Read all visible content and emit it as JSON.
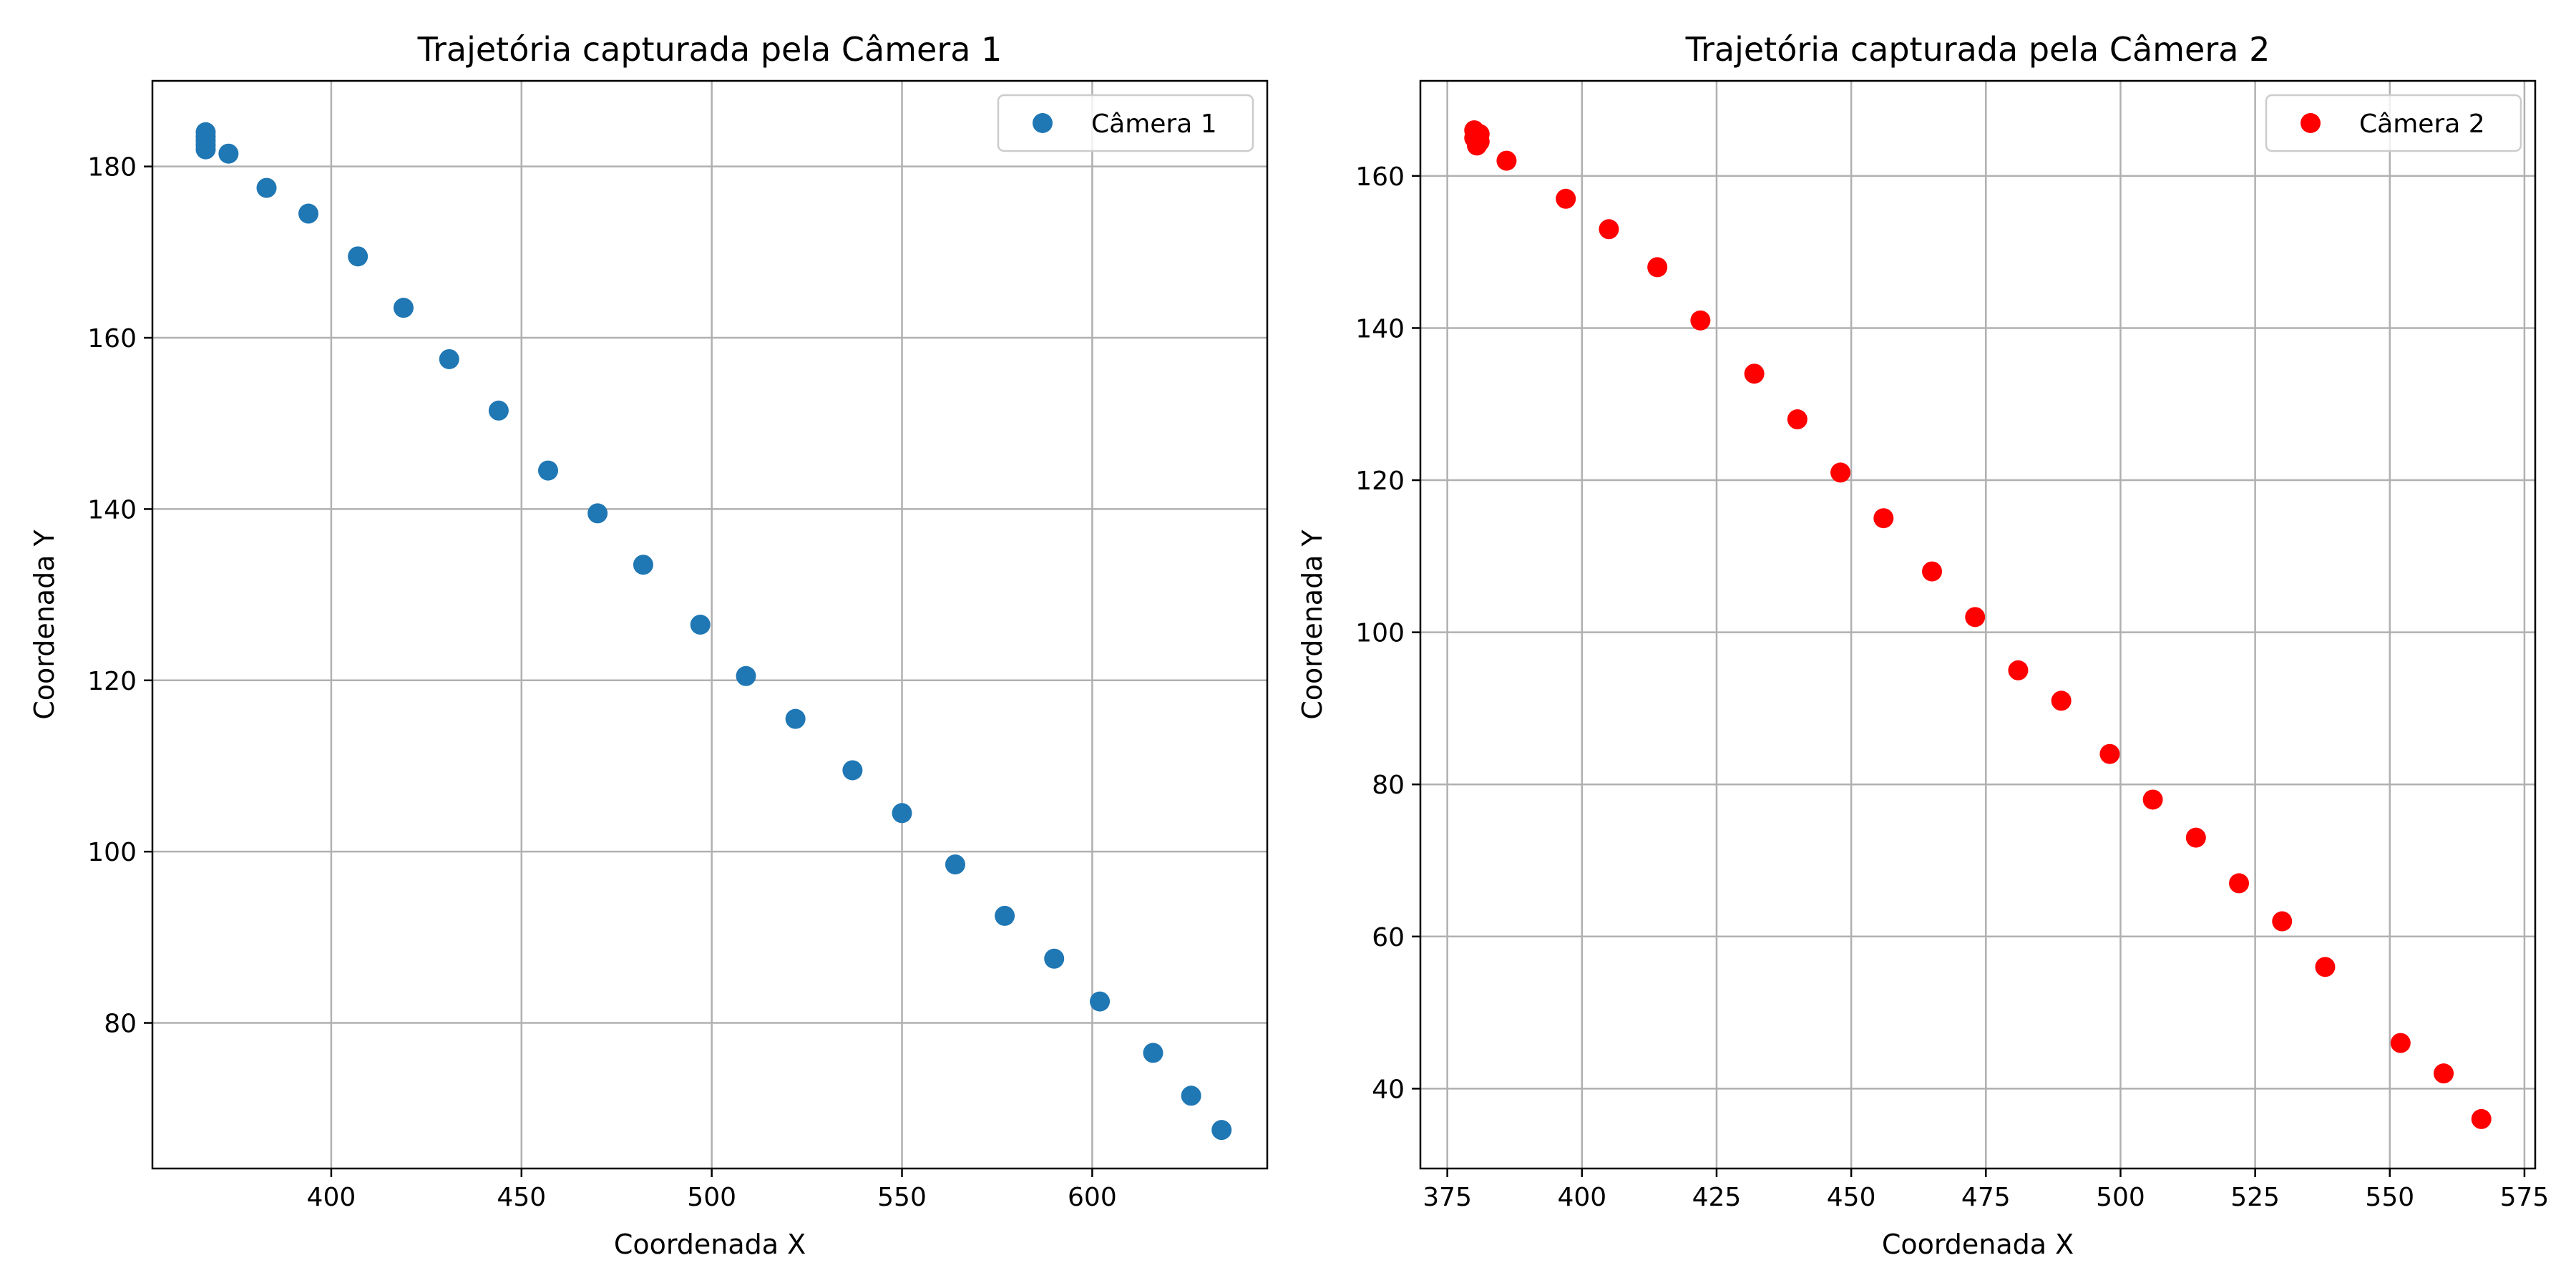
{
  "chart_data": [
    {
      "type": "scatter",
      "title": "Trajetória capturada pela Câmera 1",
      "xlabel": "Coordenada X",
      "ylabel": "Coordenada Y",
      "xlim": [
        353,
        646
      ],
      "ylim": [
        63,
        190
      ],
      "xticks": [
        400,
        450,
        500,
        550,
        600
      ],
      "yticks": [
        80,
        100,
        120,
        140,
        160,
        180
      ],
      "grid": true,
      "legend_position": "upper-right",
      "series": [
        {
          "name": "Câmera 1",
          "color": "#1f77b4",
          "points": [
            [
              367,
              184
            ],
            [
              367,
              183.5
            ],
            [
              367,
              183
            ],
            [
              367,
              182.5
            ],
            [
              367,
              182
            ],
            [
              373,
              181.5
            ],
            [
              383,
              177.5
            ],
            [
              394,
              174.5
            ],
            [
              407,
              169.5
            ],
            [
              419,
              163.5
            ],
            [
              431,
              157.5
            ],
            [
              444,
              151.5
            ],
            [
              457,
              144.5
            ],
            [
              470,
              139.5
            ],
            [
              482,
              133.5
            ],
            [
              497,
              126.5
            ],
            [
              509,
              120.5
            ],
            [
              522,
              115.5
            ],
            [
              537,
              109.5
            ],
            [
              550,
              104.5
            ],
            [
              564,
              98.5
            ],
            [
              577,
              92.5
            ],
            [
              590,
              87.5
            ],
            [
              602,
              82.5
            ],
            [
              616,
              76.5
            ],
            [
              626,
              71.5
            ],
            [
              634,
              67.5
            ]
          ]
        }
      ]
    },
    {
      "type": "scatter",
      "title": "Trajetória capturada pela Câmera 2",
      "xlabel": "Coordenada X",
      "ylabel": "Coordenada Y",
      "xlim": [
        370,
        577
      ],
      "ylim": [
        29.5,
        172.5
      ],
      "xticks": [
        375,
        400,
        425,
        450,
        475,
        500,
        525,
        550,
        575
      ],
      "yticks": [
        40,
        60,
        80,
        100,
        120,
        140,
        160
      ],
      "grid": true,
      "legend_position": "upper-right",
      "series": [
        {
          "name": "Câmera 2",
          "color": "#ff0000",
          "points": [
            [
              380,
              166
            ],
            [
              381,
              165.5
            ],
            [
              380,
              165
            ],
            [
              381,
              164.5
            ],
            [
              380.5,
              164
            ],
            [
              386,
              162
            ],
            [
              397,
              157
            ],
            [
              405,
              153
            ],
            [
              414,
              148
            ],
            [
              422,
              141
            ],
            [
              432,
              134
            ],
            [
              440,
              128
            ],
            [
              448,
              121
            ],
            [
              456,
              115
            ],
            [
              465,
              108
            ],
            [
              473,
              102
            ],
            [
              481,
              95
            ],
            [
              489,
              91
            ],
            [
              498,
              84
            ],
            [
              506,
              78
            ],
            [
              514,
              73
            ],
            [
              522,
              67
            ],
            [
              530,
              62
            ],
            [
              538,
              56
            ],
            [
              552,
              46
            ],
            [
              560,
              42
            ],
            [
              567,
              36
            ]
          ]
        }
      ]
    }
  ]
}
